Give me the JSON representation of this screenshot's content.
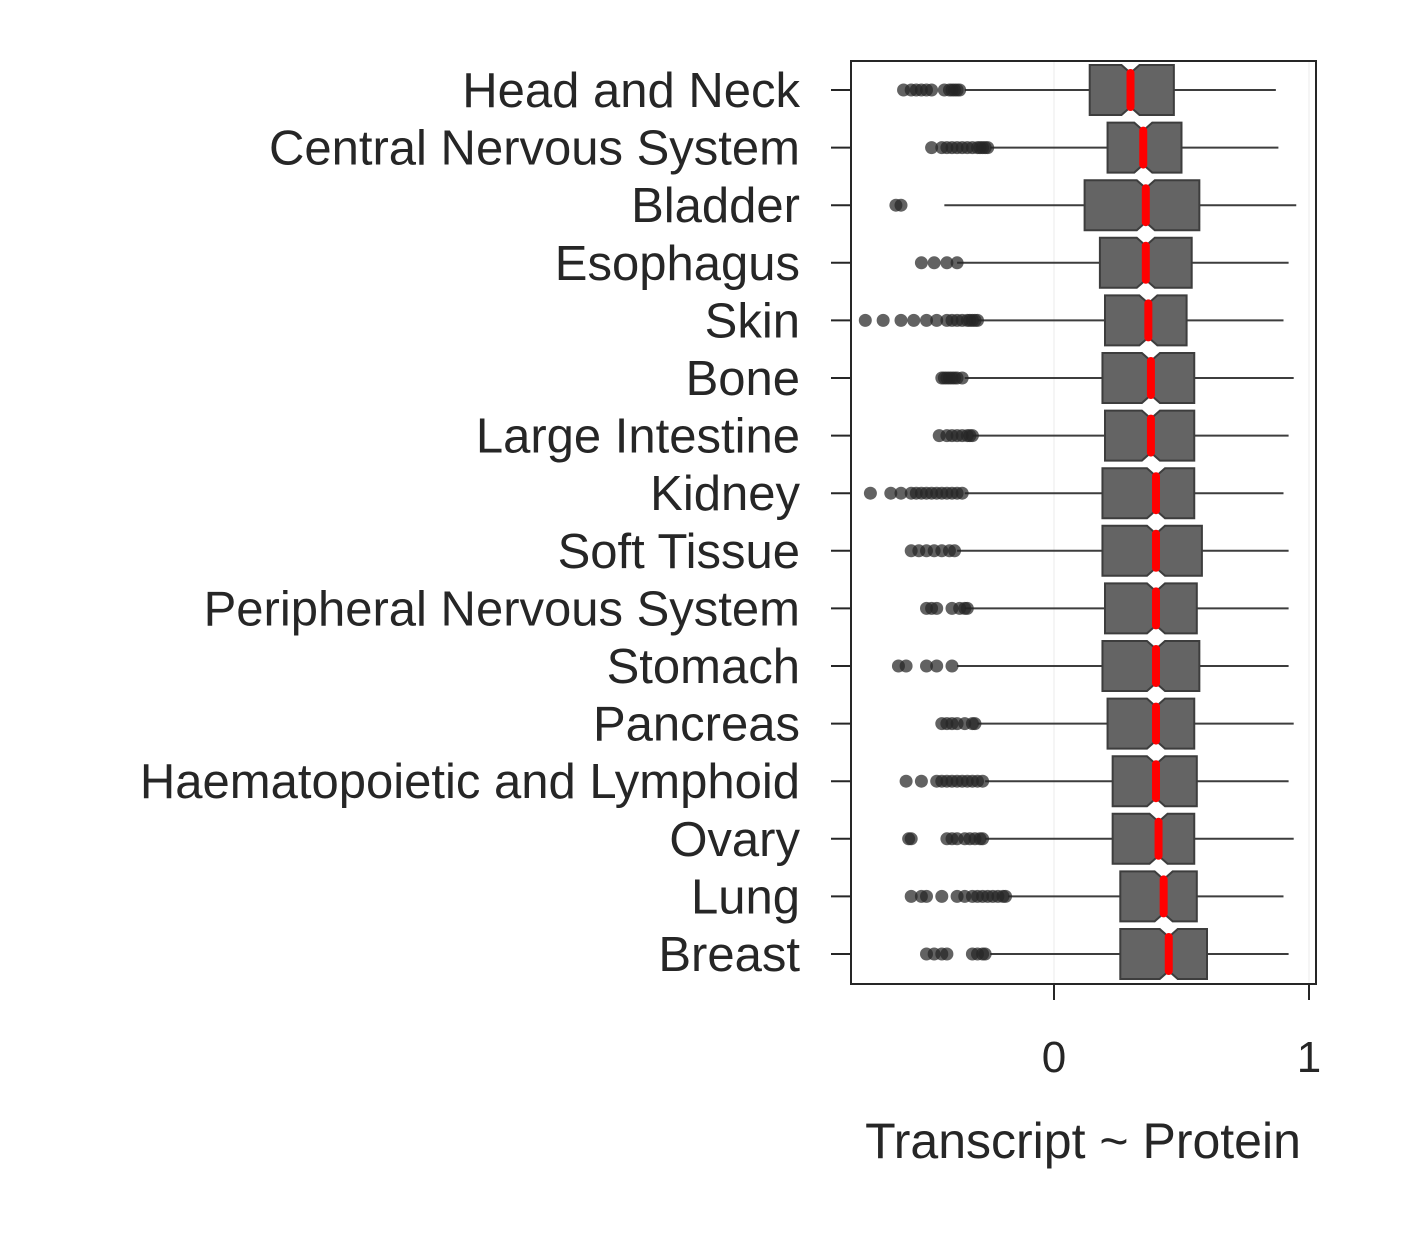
{
  "chart_data": {
    "type": "boxplot",
    "orientation": "horizontal",
    "notched": true,
    "xlabel": "Transcript ~ Protein",
    "xticks": [
      0,
      1
    ],
    "xlim": [
      -0.8,
      1.03
    ],
    "grid": "vertical lines at x ticks",
    "colors": {
      "box_fill": "#646464",
      "box_edge": "#3d3d3d",
      "median": "#ff0000",
      "whisker": "#3d3d3d",
      "outlier": "#262626",
      "axis": "#262626",
      "grid": "#ebebeb"
    },
    "categories": [
      "Head and Neck",
      "Central Nervous System",
      "Bladder",
      "Esophagus",
      "Skin",
      "Bone",
      "Large Intestine",
      "Kidney",
      "Soft Tissue",
      "Peripheral Nervous System",
      "Stomach",
      "Pancreas",
      "Haematopoietic and Lymphoid",
      "Ovary",
      "Lung",
      "Breast"
    ],
    "series": [
      {
        "category": "Head and Neck",
        "whisker_low": -0.35,
        "q1": 0.14,
        "median": 0.3,
        "q3": 0.47,
        "whisker_high": 0.87,
        "outliers": [
          -0.59,
          -0.56,
          -0.54,
          -0.52,
          -0.5,
          -0.48,
          -0.43,
          -0.41,
          -0.4,
          -0.39,
          -0.38,
          -0.37
        ]
      },
      {
        "category": "Central Nervous System",
        "whisker_low": -0.25,
        "q1": 0.21,
        "median": 0.35,
        "q3": 0.5,
        "whisker_high": 0.88,
        "outliers": [
          -0.48,
          -0.44,
          -0.42,
          -0.4,
          -0.38,
          -0.36,
          -0.34,
          -0.32,
          -0.3,
          -0.29,
          -0.28,
          -0.27,
          -0.26
        ]
      },
      {
        "category": "Bladder",
        "whisker_low": -0.43,
        "q1": 0.12,
        "median": 0.36,
        "q3": 0.57,
        "whisker_high": 0.95,
        "outliers": [
          -0.62,
          -0.6
        ]
      },
      {
        "category": "Esophagus",
        "whisker_low": -0.38,
        "q1": 0.18,
        "median": 0.36,
        "q3": 0.54,
        "whisker_high": 0.92,
        "outliers": [
          -0.52,
          -0.47,
          -0.42,
          -0.38
        ]
      },
      {
        "category": "Skin",
        "whisker_low": -0.3,
        "q1": 0.2,
        "median": 0.37,
        "q3": 0.52,
        "whisker_high": 0.9,
        "outliers": [
          -0.74,
          -0.67,
          -0.6,
          -0.55,
          -0.5,
          -0.46,
          -0.42,
          -0.4,
          -0.38,
          -0.36,
          -0.34,
          -0.33,
          -0.32,
          -0.31,
          -0.3
        ]
      },
      {
        "category": "Bone",
        "whisker_low": -0.35,
        "q1": 0.19,
        "median": 0.38,
        "q3": 0.55,
        "whisker_high": 0.94,
        "outliers": [
          -0.44,
          -0.43,
          -0.42,
          -0.41,
          -0.4,
          -0.39,
          -0.38,
          -0.36
        ]
      },
      {
        "category": "Large Intestine",
        "whisker_low": -0.32,
        "q1": 0.2,
        "median": 0.38,
        "q3": 0.55,
        "whisker_high": 0.92,
        "outliers": [
          -0.45,
          -0.42,
          -0.4,
          -0.38,
          -0.36,
          -0.34,
          -0.33,
          -0.32
        ]
      },
      {
        "category": "Kidney",
        "whisker_low": -0.35,
        "q1": 0.19,
        "median": 0.4,
        "q3": 0.55,
        "whisker_high": 0.9,
        "outliers": [
          -0.72,
          -0.64,
          -0.6,
          -0.56,
          -0.54,
          -0.52,
          -0.5,
          -0.48,
          -0.46,
          -0.44,
          -0.42,
          -0.4,
          -0.38,
          -0.36
        ]
      },
      {
        "category": "Soft Tissue",
        "whisker_low": -0.38,
        "q1": 0.19,
        "median": 0.4,
        "q3": 0.58,
        "whisker_high": 0.92,
        "outliers": [
          -0.56,
          -0.53,
          -0.5,
          -0.47,
          -0.44,
          -0.41,
          -0.39
        ]
      },
      {
        "category": "Peripheral Nervous System",
        "whisker_low": -0.35,
        "q1": 0.2,
        "median": 0.4,
        "q3": 0.56,
        "whisker_high": 0.92,
        "outliers": [
          -0.5,
          -0.48,
          -0.46,
          -0.4,
          -0.37,
          -0.35,
          -0.34
        ]
      },
      {
        "category": "Stomach",
        "whisker_low": -0.38,
        "q1": 0.19,
        "median": 0.4,
        "q3": 0.57,
        "whisker_high": 0.92,
        "outliers": [
          -0.61,
          -0.58,
          -0.5,
          -0.46,
          -0.4
        ]
      },
      {
        "category": "Pancreas",
        "whisker_low": -0.3,
        "q1": 0.21,
        "median": 0.4,
        "q3": 0.55,
        "whisker_high": 0.94,
        "outliers": [
          -0.44,
          -0.42,
          -0.4,
          -0.38,
          -0.35,
          -0.32,
          -0.31
        ]
      },
      {
        "category": "Haematopoietic and Lymphoid",
        "whisker_low": -0.27,
        "q1": 0.23,
        "median": 0.4,
        "q3": 0.56,
        "whisker_high": 0.92,
        "outliers": [
          -0.58,
          -0.52,
          -0.46,
          -0.44,
          -0.42,
          -0.4,
          -0.38,
          -0.36,
          -0.34,
          -0.32,
          -0.3,
          -0.28
        ]
      },
      {
        "category": "Ovary",
        "whisker_low": -0.27,
        "q1": 0.23,
        "median": 0.41,
        "q3": 0.55,
        "whisker_high": 0.94,
        "outliers": [
          -0.57,
          -0.56,
          -0.42,
          -0.4,
          -0.38,
          -0.35,
          -0.33,
          -0.31,
          -0.29,
          -0.28
        ]
      },
      {
        "category": "Lung",
        "whisker_low": -0.18,
        "q1": 0.26,
        "median": 0.43,
        "q3": 0.56,
        "whisker_high": 0.9,
        "outliers": [
          -0.56,
          -0.52,
          -0.5,
          -0.44,
          -0.38,
          -0.35,
          -0.32,
          -0.3,
          -0.28,
          -0.26,
          -0.24,
          -0.22,
          -0.2,
          -0.19
        ]
      },
      {
        "category": "Breast",
        "whisker_low": -0.25,
        "q1": 0.26,
        "median": 0.45,
        "q3": 0.6,
        "whisker_high": 0.92,
        "outliers": [
          -0.5,
          -0.47,
          -0.44,
          -0.42,
          -0.32,
          -0.3,
          -0.28,
          -0.27
        ]
      }
    ]
  }
}
